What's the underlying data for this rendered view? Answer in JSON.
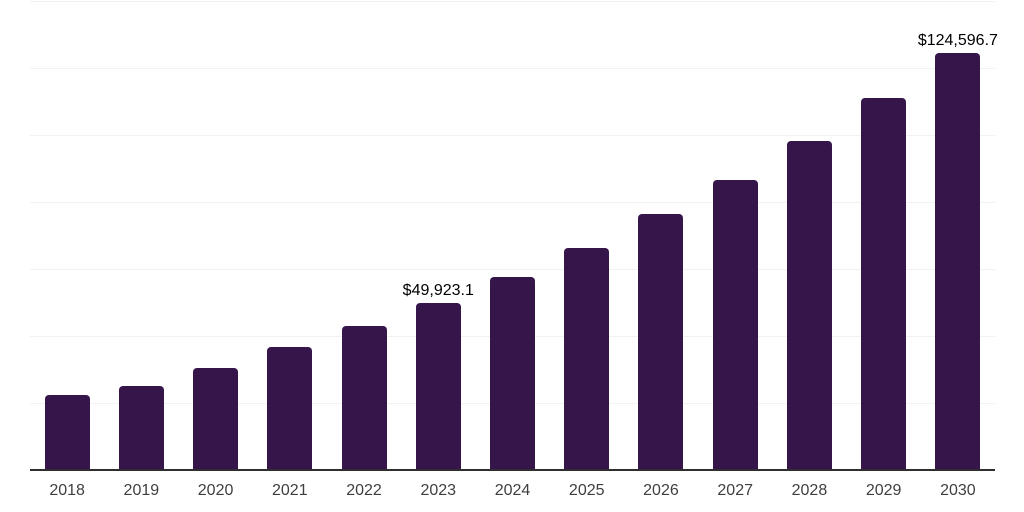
{
  "chart_data": {
    "type": "bar",
    "title": "",
    "xlabel": "",
    "ylabel": "",
    "categories": [
      "2018",
      "2019",
      "2020",
      "2021",
      "2022",
      "2023",
      "2024",
      "2025",
      "2026",
      "2027",
      "2028",
      "2029",
      "2030"
    ],
    "values": [
      22400,
      25100,
      30400,
      36700,
      43000,
      49923.1,
      57600,
      66300,
      76300,
      86600,
      98200,
      111100,
      124596.7
    ],
    "data_labels": [
      null,
      null,
      null,
      null,
      null,
      "$49,923.1",
      null,
      null,
      null,
      null,
      null,
      null,
      "$124,596.7"
    ],
    "ylim": [
      0,
      140000
    ],
    "grid_step": 20000,
    "grid": true,
    "legend": false,
    "y_tick_labels_visible": false
  },
  "colors": {
    "background": "#ffffff",
    "bar": "#36154b",
    "gridline": "#f2f2f2",
    "axis_line": "#2e2e2e",
    "x_label": "#3f3f3f",
    "data_label": "#000000"
  }
}
